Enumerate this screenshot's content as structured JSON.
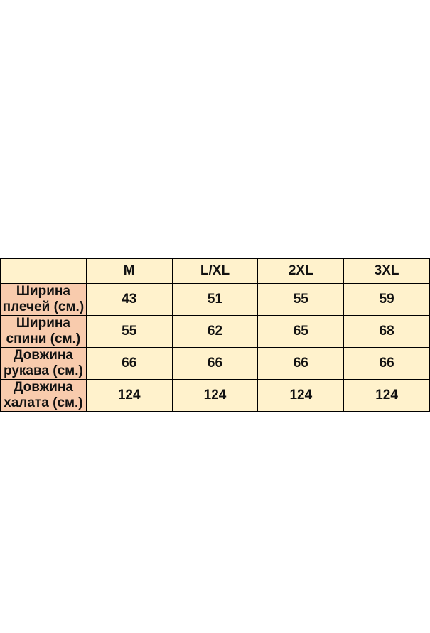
{
  "table": {
    "header": [
      "M",
      "L/XL",
      "2XL",
      "3XL"
    ],
    "rows": [
      {
        "label": "Ширина плечей (см.)",
        "values": [
          43,
          51,
          55,
          59
        ]
      },
      {
        "label": "Ширина спини (см.)",
        "values": [
          55,
          62,
          65,
          68
        ]
      },
      {
        "label": "Довжина рукава (см.)",
        "values": [
          66,
          66,
          66,
          66
        ]
      },
      {
        "label": "Довжина халата (см.)",
        "values": [
          124,
          124,
          124,
          124
        ]
      }
    ]
  }
}
